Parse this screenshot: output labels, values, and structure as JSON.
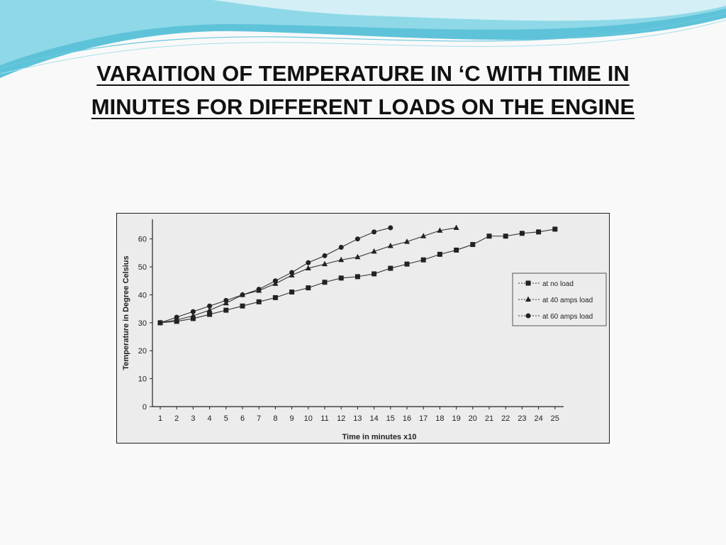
{
  "slide": {
    "title_line1": "VARAITION OF TEMPERATURE IN ‘C WITH TIME IN",
    "title_line2": "MINUTES FOR DIFFERENT LOADS ON THE ENGINE"
  },
  "chart_data": {
    "type": "line",
    "title": "",
    "xlabel": "Time in minutes x10",
    "ylabel": "Temperature in Degree Celsius",
    "x": [
      1,
      2,
      3,
      4,
      5,
      6,
      7,
      8,
      9,
      10,
      11,
      12,
      13,
      14,
      15,
      16,
      17,
      18,
      19,
      20,
      21,
      22,
      23,
      24,
      25
    ],
    "xlim": [
      0.5,
      25.5
    ],
    "ylim": [
      0,
      65
    ],
    "yticks": [
      0,
      10,
      20,
      30,
      40,
      50,
      60
    ],
    "grid": false,
    "legend_position": "right",
    "series": [
      {
        "name": "at no load",
        "marker": "square",
        "x": [
          1,
          2,
          3,
          4,
          5,
          6,
          7,
          8,
          9,
          10,
          11,
          12,
          13,
          14,
          15,
          16,
          17,
          18,
          19,
          20,
          21,
          22,
          23,
          24,
          25
        ],
        "values": [
          30,
          30.5,
          31.5,
          33,
          34.5,
          36,
          37.5,
          39,
          41,
          42.5,
          44.5,
          46,
          46.5,
          47.5,
          49.5,
          51,
          52.5,
          54.5,
          56,
          58,
          61,
          61,
          62,
          62.5,
          63.5
        ]
      },
      {
        "name": "at 40 amps load",
        "marker": "triangle",
        "x": [
          1,
          2,
          3,
          4,
          5,
          6,
          7,
          8,
          9,
          10,
          11,
          12,
          13,
          14,
          15,
          16,
          17,
          18,
          19
        ],
        "values": [
          30,
          31,
          32.5,
          34.5,
          37,
          40,
          41.5,
          44,
          47,
          49.5,
          51,
          52.5,
          53.5,
          55.5,
          57.5,
          59,
          61,
          63,
          64
        ]
      },
      {
        "name": "at 60 amps load",
        "marker": "circle",
        "x": [
          1,
          2,
          3,
          4,
          5,
          6,
          7,
          8,
          9,
          10,
          11,
          12,
          13,
          14,
          15
        ],
        "values": [
          30,
          32,
          34,
          36,
          38,
          40,
          42,
          45,
          48,
          51.5,
          54,
          57,
          60,
          62.5,
          64
        ]
      }
    ]
  }
}
